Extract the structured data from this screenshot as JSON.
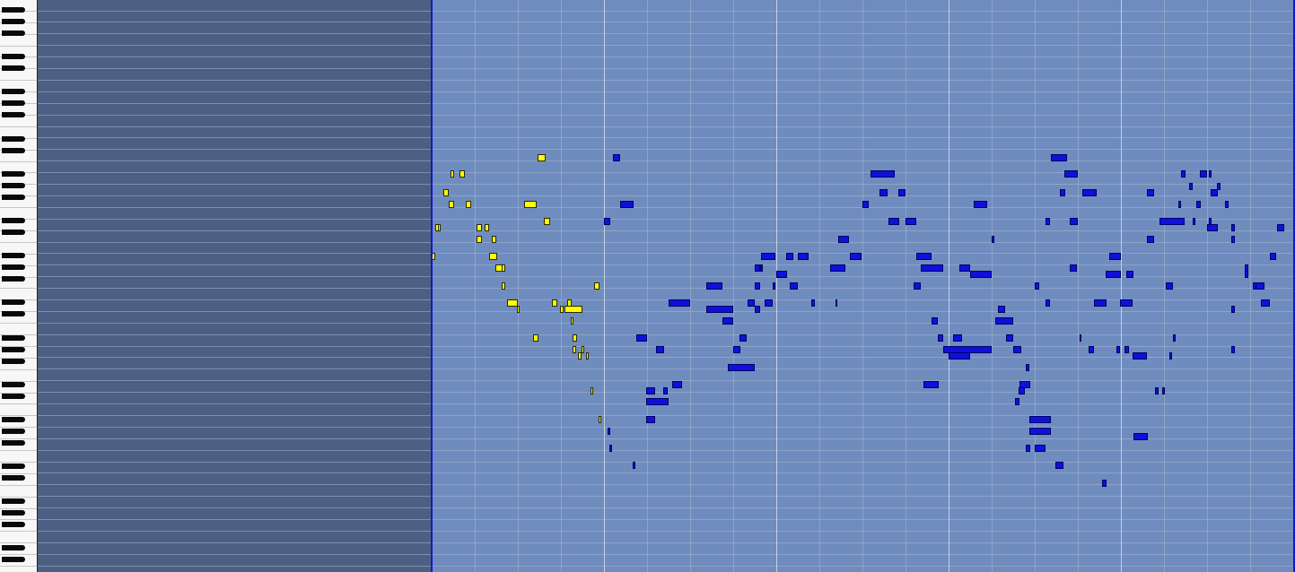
{
  "colors": {
    "played_note": "#ffff00",
    "upcoming_note": "#1010d8",
    "roll_background": "#6f8cbe",
    "played_region": "#4d5f82",
    "playhead": "#1515d0"
  },
  "piano_roll": {
    "octave_key_icons": "piano-keyboard",
    "notes_played": 38,
    "notes_upcoming": 140
  }
}
